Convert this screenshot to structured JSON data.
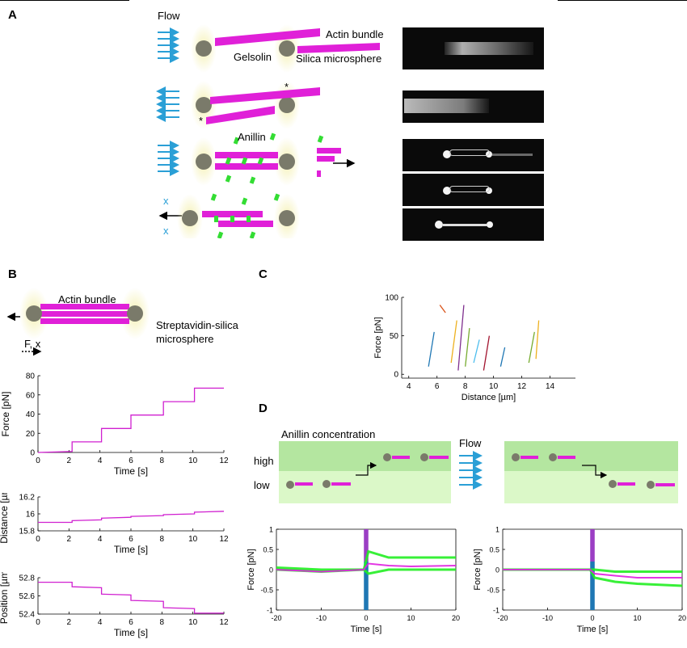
{
  "panels": {
    "a": "A",
    "b": "B",
    "c": "C",
    "d": "D"
  },
  "panelA": {
    "flow": "Flow",
    "actin_bundle": "Actin bundle",
    "gelsolin": "Gelsolin",
    "silica_microsphere": "Silica microsphere",
    "anillin": "Anillin",
    "star": "*",
    "x": "x",
    "colors": {
      "actin": "#e020d8",
      "anillin": "#33dd33",
      "sphere": "#7a7a6a",
      "flow": "#2a9fd6",
      "glow": "#f4f0b0"
    }
  },
  "panelB": {
    "actin_bundle": "Actin bundle",
    "strep_line1": "Streptavidin-silica",
    "strep_line2": "microsphere",
    "fx": "F, x",
    "force_plot": {
      "ylabel": "Force [pN]",
      "xlabel": "Time [s]",
      "yticks": [
        "0",
        "20",
        "40",
        "60",
        "80"
      ],
      "xticks": [
        "0",
        "2",
        "4",
        "6",
        "8",
        "10",
        "12"
      ]
    },
    "distance_plot": {
      "ylabel": "Distance [µm]",
      "xlabel": "Time [s]",
      "yticks": [
        "15.8",
        "16",
        "16.2"
      ],
      "xticks": [
        "0",
        "2",
        "4",
        "6",
        "8",
        "10",
        "12"
      ]
    },
    "position_plot": {
      "ylabel": "Position [µm]",
      "xlabel": "Time [s]",
      "yticks": [
        "52.4",
        "52.6",
        "52.8"
      ],
      "xticks": [
        "0",
        "2",
        "4",
        "6",
        "8",
        "10",
        "12"
      ]
    }
  },
  "panelC": {
    "ylabel": "Force [pN]",
    "xlabel": "Distance [µm]",
    "yticks": [
      "0",
      "50",
      "100"
    ],
    "xticks": [
      "4",
      "6",
      "8",
      "10",
      "12",
      "14"
    ]
  },
  "panelD": {
    "title": "Anillin concentration",
    "high": "high",
    "low": "low",
    "flow": "Flow",
    "ylabel": "Force [pN]",
    "xlabel": "Time [s]",
    "yticks": [
      "-1",
      "-0.5",
      "0",
      "0.5",
      "1"
    ],
    "xticks": [
      "-20",
      "-10",
      "0",
      "10",
      "20"
    ]
  },
  "chart_data": [
    {
      "type": "line",
      "title": "",
      "xlabel": "Time [s]",
      "ylabel": "Force [pN]",
      "xlim": [
        0,
        12
      ],
      "ylim": [
        0,
        80
      ],
      "series": [
        {
          "color": "#d020d0",
          "x": [
            0,
            2.2,
            2.2,
            4.1,
            4.1,
            6.0,
            6.0,
            8.1,
            8.1,
            10.1,
            10.1,
            12
          ],
          "y": [
            0,
            1,
            11,
            11,
            25,
            25,
            39,
            39,
            53,
            53,
            67,
            67
          ]
        }
      ]
    },
    {
      "type": "line",
      "title": "",
      "xlabel": "Time [s]",
      "ylabel": "Distance [µm]",
      "xlim": [
        0,
        12
      ],
      "ylim": [
        15.8,
        16.2
      ],
      "series": [
        {
          "color": "#d020d0",
          "x": [
            0,
            2.2,
            2.2,
            4.1,
            4.1,
            6.0,
            6.0,
            8.1,
            8.1,
            10.1,
            10.1,
            12
          ],
          "y": [
            15.9,
            15.9,
            15.92,
            15.93,
            15.95,
            15.96,
            15.97,
            15.98,
            15.99,
            16.0,
            16.02,
            16.03
          ]
        }
      ]
    },
    {
      "type": "line",
      "title": "",
      "xlabel": "Time [s]",
      "ylabel": "Position [µm]",
      "xlim": [
        0,
        12
      ],
      "ylim": [
        52.4,
        52.8
      ],
      "series": [
        {
          "color": "#d020d0",
          "x": [
            0,
            2.2,
            2.2,
            4.1,
            4.1,
            6.0,
            6.0,
            8.1,
            8.1,
            10.1,
            10.1,
            12
          ],
          "y": [
            52.75,
            52.75,
            52.7,
            52.69,
            52.62,
            52.61,
            52.55,
            52.54,
            52.47,
            52.46,
            52.41,
            52.41
          ]
        }
      ]
    },
    {
      "type": "line",
      "title": "",
      "xlabel": "Distance [µm]",
      "ylabel": "Force [pN]",
      "xlim": [
        3.5,
        15.8
      ],
      "ylim": [
        -5,
        100
      ],
      "series": [
        {
          "color": "#1f77b4",
          "x": [
            5.4,
            5.8
          ],
          "y": [
            10,
            55
          ]
        },
        {
          "color": "#d95319",
          "x": [
            6.2,
            6.6
          ],
          "y": [
            90,
            80
          ]
        },
        {
          "color": "#edb120",
          "x": [
            7.0,
            7.4
          ],
          "y": [
            15,
            70
          ]
        },
        {
          "color": "#7e2f8e",
          "x": [
            7.5,
            7.9
          ],
          "y": [
            5,
            90
          ]
        },
        {
          "color": "#77ac30",
          "x": [
            8.0,
            8.3
          ],
          "y": [
            10,
            60
          ]
        },
        {
          "color": "#4dbeee",
          "x": [
            8.6,
            9.0
          ],
          "y": [
            15,
            45
          ]
        },
        {
          "color": "#a2142f",
          "x": [
            9.3,
            9.7
          ],
          "y": [
            5,
            50
          ]
        },
        {
          "color": "#1f77b4",
          "x": [
            10.5,
            10.8
          ],
          "y": [
            10,
            35
          ]
        },
        {
          "color": "#77ac30",
          "x": [
            12.5,
            12.9
          ],
          "y": [
            15,
            55
          ]
        },
        {
          "color": "#edb120",
          "x": [
            13.0,
            13.2
          ],
          "y": [
            20,
            70
          ]
        }
      ]
    },
    {
      "type": "line",
      "title": "",
      "xlabel": "Time [s]",
      "ylabel": "Force [pN]",
      "xlim": [
        -20,
        20
      ],
      "ylim": [
        -1,
        1
      ],
      "series": [
        {
          "color": "#22ee22",
          "x": [
            -20,
            -10,
            -0.5,
            0.5,
            5,
            10,
            20
          ],
          "y": [
            0.05,
            0,
            0,
            0.45,
            0.3,
            0.3,
            0.3
          ]
        },
        {
          "color": "#22ee22",
          "x": [
            -20,
            -10,
            -0.5,
            0.5,
            5,
            10,
            20
          ],
          "y": [
            0,
            -0.05,
            0,
            -0.1,
            0,
            0,
            0
          ]
        },
        {
          "color": "#e020e0",
          "x": [
            -20,
            -10,
            -0.5,
            0.5,
            5,
            10,
            20
          ],
          "y": [
            0,
            -0.05,
            0,
            0.15,
            0.1,
            0.08,
            0.1
          ]
        }
      ]
    },
    {
      "type": "line",
      "title": "",
      "xlabel": "Time [s]",
      "ylabel": "Force [pN]",
      "xlim": [
        -20,
        20
      ],
      "ylim": [
        -1,
        1
      ],
      "series": [
        {
          "color": "#22ee22",
          "x": [
            -20,
            -10,
            -0.5,
            0.5,
            5,
            10,
            20
          ],
          "y": [
            0,
            0,
            0,
            -0.2,
            -0.3,
            -0.35,
            -0.4
          ]
        },
        {
          "color": "#22ee22",
          "x": [
            -20,
            -10,
            -0.5,
            0.5,
            5,
            10,
            20
          ],
          "y": [
            0,
            0,
            0,
            0,
            -0.05,
            -0.05,
            -0.05
          ]
        },
        {
          "color": "#e020e0",
          "x": [
            -20,
            -10,
            -0.5,
            0.5,
            5,
            10,
            20
          ],
          "y": [
            0,
            0,
            0,
            -0.1,
            -0.15,
            -0.2,
            -0.2
          ]
        }
      ]
    }
  ]
}
